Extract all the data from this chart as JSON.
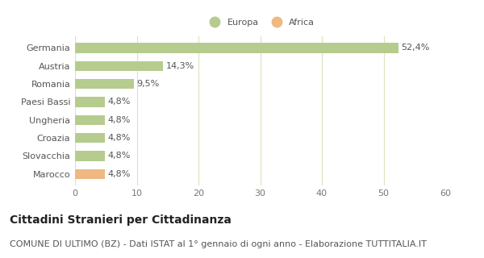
{
  "categories": [
    "Marocco",
    "Slovacchia",
    "Croazia",
    "Ungheria",
    "Paesi Bassi",
    "Romania",
    "Austria",
    "Germania"
  ],
  "values": [
    4.8,
    4.8,
    4.8,
    4.8,
    4.8,
    9.5,
    14.3,
    52.4
  ],
  "labels": [
    "4,8%",
    "4,8%",
    "4,8%",
    "4,8%",
    "4,8%",
    "9,5%",
    "14,3%",
    "52,4%"
  ],
  "colors": [
    "#f0b882",
    "#b5cc8e",
    "#b5cc8e",
    "#b5cc8e",
    "#b5cc8e",
    "#b5cc8e",
    "#b5cc8e",
    "#b5cc8e"
  ],
  "legend_labels": [
    "Europa",
    "Africa"
  ],
  "legend_colors": [
    "#b5cc8e",
    "#f0b882"
  ],
  "xlim": [
    0,
    60
  ],
  "xticks": [
    0,
    10,
    20,
    30,
    40,
    50,
    60
  ],
  "title": "Cittadini Stranieri per Cittadinanza",
  "subtitle": "COMUNE DI ULTIMO (BZ) - Dati ISTAT al 1° gennaio di ogni anno - Elaborazione TUTTITALIA.IT",
  "bg_color": "#ffffff",
  "grid_color": "#d8e4bc",
  "title_fontsize": 10,
  "subtitle_fontsize": 8,
  "label_fontsize": 8,
  "tick_fontsize": 8,
  "bar_height": 0.55
}
